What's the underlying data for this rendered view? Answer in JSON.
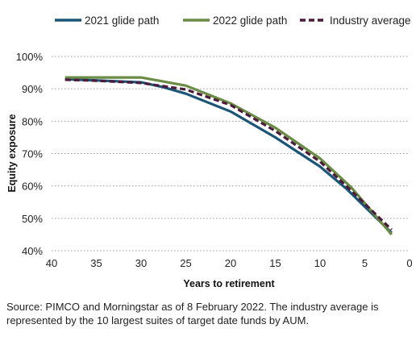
{
  "chart_data": {
    "type": "line",
    "xlabel": "Years to retirement",
    "ylabel": "Equity exposure",
    "x_ticks": [
      "40",
      "35",
      "30",
      "25",
      "20",
      "15",
      "10",
      "5",
      "0"
    ],
    "y_ticks": [
      "100%",
      "90%",
      "80%",
      "70%",
      "60%",
      "50%",
      "40%"
    ],
    "xlim": [
      40,
      0
    ],
    "ylim": [
      40,
      100
    ],
    "x_reversed": true,
    "grid": "horizontal dotted",
    "legend_position": "top",
    "series": [
      {
        "name": "2021 glide path",
        "color": "#1b5577",
        "style": "solid",
        "points": [
          [
            38.5,
            93
          ],
          [
            30,
            92
          ],
          [
            27.5,
            90.5
          ],
          [
            25,
            88.5
          ],
          [
            20,
            83
          ],
          [
            15,
            75
          ],
          [
            10,
            66
          ],
          [
            7,
            59
          ],
          [
            2,
            45.5
          ]
        ]
      },
      {
        "name": "2022 glide path",
        "color": "#6a8c45",
        "style": "solid",
        "points": [
          [
            38.5,
            93.5
          ],
          [
            30,
            93.5
          ],
          [
            25,
            91
          ],
          [
            20,
            85.5
          ],
          [
            15,
            78
          ],
          [
            10,
            68.5
          ],
          [
            6.5,
            59.5
          ],
          [
            2,
            45
          ]
        ]
      },
      {
        "name": "Industry average",
        "color": "#4d1a3c",
        "style": "dashed",
        "points": [
          [
            38.5,
            92.8
          ],
          [
            35,
            92.5
          ],
          [
            30,
            91.8
          ],
          [
            25,
            89.8
          ],
          [
            20,
            85
          ],
          [
            15,
            77
          ],
          [
            10,
            67.5
          ],
          [
            6.5,
            58.5
          ],
          [
            2,
            46.5
          ]
        ]
      }
    ],
    "source": "Source: PIMCO and Morningstar as of 8 February 2022. The industry average is represented by the 10 largest suites of target date funds by AUM."
  }
}
